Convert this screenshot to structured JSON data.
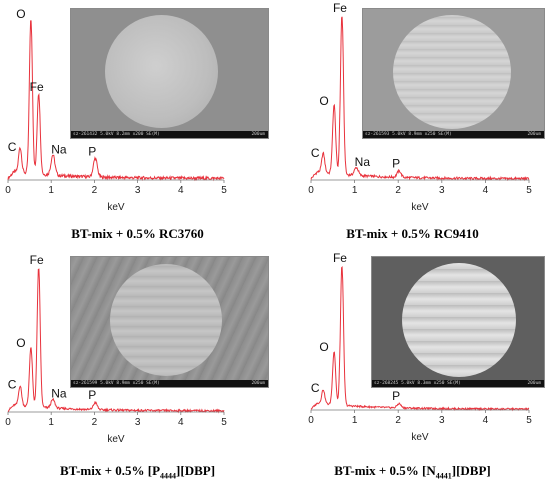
{
  "panels": [
    {
      "caption_pre": "BT-mix + 0.5% RC3760",
      "caption_sub": "",
      "caption_post": "",
      "sem_info": "sz-261432 5.0kV 8.2mm x200 SE(M)",
      "sem_scale": "200um"
    },
    {
      "caption_pre": "BT-mix + 0.5% RC9410",
      "caption_sub": "",
      "caption_post": "",
      "sem_info": "sz-261593 5.0kV 8.9mm x250 SE(M)",
      "sem_scale": "200um"
    },
    {
      "caption_pre": "BT-mix + 0.5% [P",
      "caption_sub": "4444",
      "caption_post": "][DBP]",
      "sem_info": "sz-261599 5.0kV 8.9mm x250 SE(M)",
      "sem_scale": "200um"
    },
    {
      "caption_pre": "BT-mix + 0.5% [N",
      "caption_sub": "4441",
      "caption_post": "][DBP]",
      "sem_info": "sz-268245 5.0kV 8.3mm x250 SE(M)",
      "sem_scale": "200um"
    }
  ],
  "chart_data": [
    {
      "type": "line",
      "xlabel": "keV",
      "xlim": [
        0,
        5
      ],
      "xticks": [
        "0",
        "1",
        "2",
        "3",
        "4",
        "5"
      ],
      "line_color": "#e8323c",
      "peaks": [
        {
          "label": "C",
          "x": 0.28,
          "y": 0.16
        },
        {
          "label": "O",
          "x": 0.53,
          "y": 1.0
        },
        {
          "label": "Fe",
          "x": 0.71,
          "y": 0.52
        },
        {
          "label": "Na",
          "x": 1.04,
          "y": 0.13
        },
        {
          "label": "P",
          "x": 2.02,
          "y": 0.12
        }
      ],
      "noise_level": 0.02
    },
    {
      "type": "line",
      "xlabel": "keV",
      "xlim": [
        0,
        5
      ],
      "xticks": [
        "0",
        "1",
        "2",
        "3",
        "4",
        "5"
      ],
      "line_color": "#e8323c",
      "peaks": [
        {
          "label": "C",
          "x": 0.28,
          "y": 0.12
        },
        {
          "label": "O",
          "x": 0.53,
          "y": 0.43
        },
        {
          "label": "Fe",
          "x": 0.71,
          "y": 1.0
        },
        {
          "label": "Na",
          "x": 1.04,
          "y": 0.05
        },
        {
          "label": "P",
          "x": 2.02,
          "y": 0.04
        }
      ],
      "noise_level": 0.015
    },
    {
      "type": "line",
      "xlabel": "keV",
      "xlim": [
        0,
        5
      ],
      "xticks": [
        "0",
        "1",
        "2",
        "3",
        "4",
        "5"
      ],
      "line_color": "#e8323c",
      "peaks": [
        {
          "label": "C",
          "x": 0.28,
          "y": 0.14
        },
        {
          "label": "O",
          "x": 0.53,
          "y": 0.42
        },
        {
          "label": "Fe",
          "x": 0.71,
          "y": 1.0
        },
        {
          "label": "Na",
          "x": 1.04,
          "y": 0.06
        },
        {
          "label": "P",
          "x": 2.02,
          "y": 0.05
        }
      ],
      "noise_level": 0.015
    },
    {
      "type": "line",
      "xlabel": "keV",
      "xlim": [
        0,
        5
      ],
      "xticks": [
        "0",
        "1",
        "2",
        "3",
        "4",
        "5"
      ],
      "line_color": "#e8323c",
      "peaks": [
        {
          "label": "C",
          "x": 0.28,
          "y": 0.1
        },
        {
          "label": "O",
          "x": 0.53,
          "y": 0.38
        },
        {
          "label": "Fe",
          "x": 0.71,
          "y": 1.0
        },
        {
          "label": "P",
          "x": 2.02,
          "y": 0.03
        }
      ],
      "noise_level": 0.012
    }
  ]
}
